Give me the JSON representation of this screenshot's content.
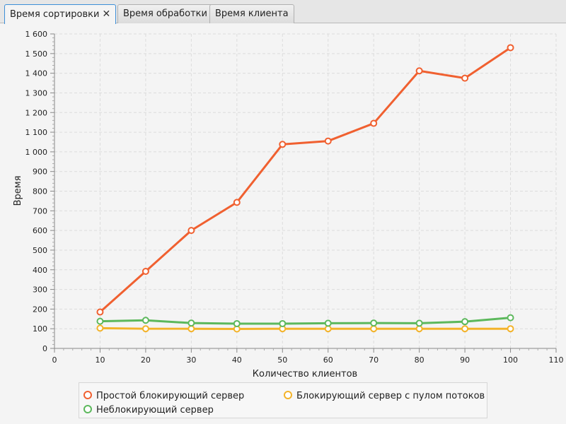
{
  "tabs": [
    {
      "label": "Время сортировки",
      "active": true,
      "closable": true
    },
    {
      "label": "Время обработки",
      "active": false,
      "closable": false
    },
    {
      "label": "Время клиента",
      "active": false,
      "closable": false
    }
  ],
  "chart_data": {
    "type": "line",
    "title": "",
    "xlabel": "Количество клиентов",
    "ylabel": "Время",
    "xlim": [
      0,
      110
    ],
    "ylim": [
      0,
      1600
    ],
    "x_ticks": [
      0,
      10,
      20,
      30,
      40,
      50,
      60,
      70,
      80,
      90,
      100,
      110
    ],
    "y_ticks": [
      0,
      100,
      200,
      300,
      400,
      500,
      600,
      700,
      800,
      900,
      1000,
      1100,
      1200,
      1300,
      1400,
      1500,
      1600
    ],
    "x_tick_labels": [
      "0",
      "10",
      "20",
      "30",
      "40",
      "50",
      "60",
      "70",
      "80",
      "90",
      "100",
      "110"
    ],
    "y_tick_labels": [
      "0",
      "100",
      "200",
      "300",
      "400",
      "500",
      "600",
      "700",
      "800",
      "900",
      "1 000",
      "1 100",
      "1 200",
      "1 300",
      "1 400",
      "1 500",
      "1 600"
    ],
    "grid": true,
    "legend_position": "bottom",
    "x": [
      10,
      20,
      30,
      40,
      50,
      60,
      70,
      80,
      90,
      100
    ],
    "series": [
      {
        "name": "Простой блокирующий сервер",
        "color": "#f06030",
        "values": [
          185,
          392,
          600,
          743,
          1038,
          1055,
          1145,
          1412,
          1375,
          1530
        ]
      },
      {
        "name": "Блокирующий сервер с пулом потоков",
        "color": "#f3b32a",
        "values": [
          103,
          100,
          100,
          99,
          100,
          100,
          100,
          100,
          100,
          100
        ]
      },
      {
        "name": "Неблокирующий сервер",
        "color": "#5cb85c",
        "values": [
          138,
          143,
          129,
          126,
          126,
          128,
          129,
          128,
          136,
          156
        ]
      }
    ]
  }
}
